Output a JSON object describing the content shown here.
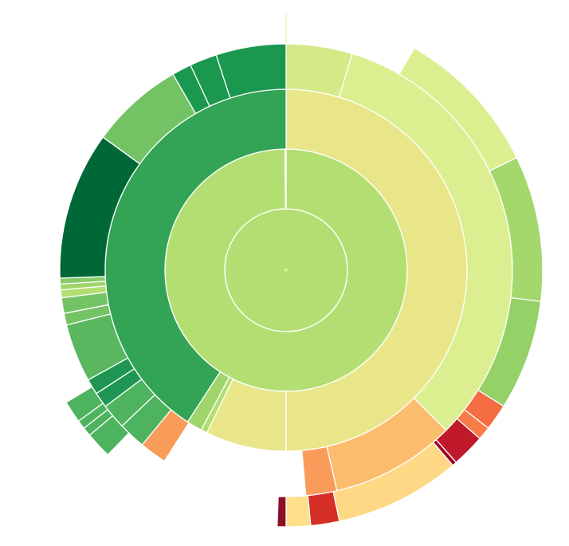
{
  "chart_data": {
    "type": "sunburst",
    "title": "",
    "value_unit": "degrees of arc",
    "colors": {
      "background": "#ffffff",
      "separator": "#ffffff",
      "center_dot": "#e4ef94"
    },
    "rings": [
      {
        "level": 1,
        "segments": [
          {
            "start": 0,
            "end": 360,
            "color": "#b3df72"
          }
        ]
      },
      {
        "level": 2,
        "segments": [
          {
            "start": 0,
            "end": 359.5,
            "color": "#b3df72"
          },
          {
            "start": 359.5,
            "end": 360,
            "color": "#e0f19a"
          }
        ]
      },
      {
        "level": 3,
        "segments": [
          {
            "start": 0,
            "end": 180,
            "color": "#e8e689"
          },
          {
            "start": 180,
            "end": 206,
            "color": "#e8e689"
          },
          {
            "start": 206,
            "end": 208,
            "color": "#b3df72"
          },
          {
            "start": 208,
            "end": 213,
            "color": "#9fd56a"
          },
          {
            "start": 213,
            "end": 360,
            "color": "#33a355"
          }
        ]
      },
      {
        "level": 4,
        "segments": [
          {
            "start": 0,
            "end": 17,
            "color": "#d4ea88"
          },
          {
            "start": 17,
            "end": 135,
            "color": "#dcef90"
          },
          {
            "start": 135,
            "end": 167,
            "color": "#fbbd6d"
          },
          {
            "start": 167,
            "end": 175,
            "color": "#f99c5a"
          },
          {
            "start": 212.5,
            "end": 219.5,
            "color": "#f99c5a"
          },
          {
            "start": 219.5,
            "end": 226.5,
            "color": "#4db35e"
          },
          {
            "start": 226.5,
            "end": 233,
            "color": "#4db35e"
          },
          {
            "start": 233,
            "end": 237,
            "color": "#1e9552"
          },
          {
            "start": 237,
            "end": 241,
            "color": "#1e9552"
          },
          {
            "start": 241,
            "end": 256,
            "color": "#5ab760"
          },
          {
            "start": 256,
            "end": 259,
            "color": "#73c365"
          },
          {
            "start": 259,
            "end": 263,
            "color": "#73c365"
          },
          {
            "start": 263,
            "end": 265,
            "color": "#b3df72"
          },
          {
            "start": 265,
            "end": 266.5,
            "color": "#9fd56a"
          },
          {
            "start": 266.5,
            "end": 268,
            "color": "#86cb67"
          },
          {
            "start": 268,
            "end": 306,
            "color": "#006837"
          },
          {
            "start": 306,
            "end": 330,
            "color": "#73c365"
          },
          {
            "start": 330,
            "end": 335,
            "color": "#1a9850"
          },
          {
            "start": 335,
            "end": 342,
            "color": "#1a9850"
          },
          {
            "start": 342,
            "end": 360,
            "color": "#1a9850"
          }
        ]
      },
      {
        "level": 5,
        "segments": [
          {
            "start": 30,
            "end": 64,
            "color": "#dcef90"
          },
          {
            "start": 64,
            "end": 97,
            "color": "#a4d86c"
          },
          {
            "start": 97,
            "end": 122,
            "color": "#94d166"
          },
          {
            "start": 122,
            "end": 128,
            "color": "#f46d43"
          },
          {
            "start": 128,
            "end": 131,
            "color": "#f67c4a"
          },
          {
            "start": 131,
            "end": 138.5,
            "color": "#c0192b"
          },
          {
            "start": 138.5,
            "end": 139.5,
            "color": "#a50026"
          },
          {
            "start": 139.5,
            "end": 168,
            "color": "#fed884"
          },
          {
            "start": 168,
            "end": 174.5,
            "color": "#d62f27"
          },
          {
            "start": 174.5,
            "end": 180,
            "color": "#fee08b"
          },
          {
            "start": 180,
            "end": 182,
            "color": "#8b0f26"
          },
          {
            "start": 224,
            "end": 230,
            "color": "#4db35e"
          },
          {
            "start": 230,
            "end": 232,
            "color": "#4db35e"
          },
          {
            "start": 232,
            "end": 234,
            "color": "#4db35e"
          },
          {
            "start": 234,
            "end": 239,
            "color": "#4db35e"
          }
        ]
      }
    ]
  }
}
